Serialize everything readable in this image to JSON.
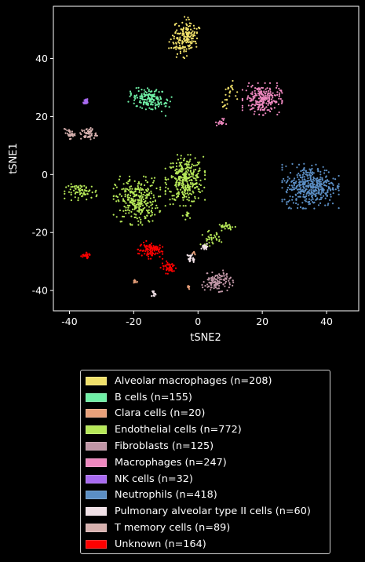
{
  "chart_data": {
    "type": "scatter",
    "xlabel": "tSNE2",
    "ylabel": "tSNE1",
    "xlim": [
      -45,
      50
    ],
    "ylim": [
      -47,
      58
    ],
    "x_ticks": [
      -40,
      -20,
      0,
      20,
      40
    ],
    "y_ticks": [
      -40,
      -20,
      0,
      20,
      40
    ],
    "legend_placement": "below",
    "series": [
      {
        "name": "Alveolar macrophages (n=208)",
        "color": "#f0e06a",
        "clusters": [
          {
            "cx": -4,
            "cy": 47,
            "sx": 2.0,
            "sy": 3.2,
            "n": 180,
            "rot": -0.3
          },
          {
            "cx": 10,
            "cy": 29,
            "sx": 1.0,
            "sy": 1.5,
            "n": 20,
            "rot": 0
          },
          {
            "cx": 8.5,
            "cy": 24,
            "sx": 0.5,
            "sy": 0.8,
            "n": 8,
            "rot": 0
          }
        ]
      },
      {
        "name": "B cells (n=155)",
        "color": "#6ff0a6",
        "clusters": [
          {
            "cx": -15,
            "cy": 26,
            "sx": 3.0,
            "sy": 1.7,
            "n": 155,
            "rot": -0.35
          }
        ]
      },
      {
        "name": "Clara cells (n=20)",
        "color": "#e8a07a",
        "clusters": [
          {
            "cx": -19.5,
            "cy": -37,
            "sx": 0.5,
            "sy": 0.3,
            "n": 8,
            "rot": 0
          },
          {
            "cx": -1,
            "cy": -27,
            "sx": 0.6,
            "sy": 0.4,
            "n": 6,
            "rot": 0
          },
          {
            "cx": -3,
            "cy": -39,
            "sx": 0.3,
            "sy": 0.3,
            "n": 6,
            "rot": 0
          }
        ]
      },
      {
        "name": "Endothelial cells (n=772)",
        "color": "#b6e858",
        "clusters": [
          {
            "cx": -4,
            "cy": -2,
            "sx": 2.8,
            "sy": 4.0,
            "n": 330,
            "rot": 0
          },
          {
            "cx": -19,
            "cy": -9,
            "sx": 3.3,
            "sy": 3.8,
            "n": 300,
            "rot": 0
          },
          {
            "cx": -36,
            "cy": -6,
            "sx": 2.5,
            "sy": 1.3,
            "n": 70,
            "rot": 0
          },
          {
            "cx": 4,
            "cy": -22,
            "sx": 1.5,
            "sy": 1.2,
            "n": 35,
            "rot": 0
          },
          {
            "cx": 9,
            "cy": -18,
            "sx": 1.3,
            "sy": 0.6,
            "n": 25,
            "rot": 0
          },
          {
            "cx": -3,
            "cy": -14,
            "sx": 0.8,
            "sy": 0.7,
            "n": 12,
            "rot": 0
          }
        ]
      },
      {
        "name": "Fibroblasts (n=125)",
        "color": "#c096a6",
        "clusters": [
          {
            "cx": 6,
            "cy": -37,
            "sx": 2.2,
            "sy": 1.6,
            "n": 125,
            "rot": 0.2
          }
        ]
      },
      {
        "name": "Macrophages (n=247)",
        "color": "#ee88bf",
        "clusters": [
          {
            "cx": 20,
            "cy": 26,
            "sx": 2.8,
            "sy": 2.5,
            "n": 230,
            "rot": 0
          },
          {
            "cx": 7,
            "cy": 18,
            "sx": 0.8,
            "sy": 0.6,
            "n": 17,
            "rot": 0
          }
        ]
      },
      {
        "name": "NK cells (n=32)",
        "color": "#a86af0",
        "clusters": [
          {
            "cx": -35,
            "cy": 25,
            "sx": 0.3,
            "sy": 0.5,
            "n": 32,
            "rot": 0
          }
        ]
      },
      {
        "name": "Neutrophils (n=418)",
        "color": "#5b8ec4",
        "clusters": [
          {
            "cx": 35,
            "cy": -4,
            "sx": 4.0,
            "sy": 3.5,
            "n": 418,
            "rot": 0
          }
        ]
      },
      {
        "name": "Pulmonary alveolar type II cells (n=60)",
        "color": "#f0e0e6",
        "clusters": [
          {
            "cx": -14,
            "cy": -41,
            "sx": 0.4,
            "sy": 0.4,
            "n": 12,
            "rot": 0
          },
          {
            "cx": -2,
            "cy": -29,
            "sx": 0.6,
            "sy": 0.8,
            "n": 25,
            "rot": 0
          },
          {
            "cx": 2,
            "cy": -25,
            "sx": 0.5,
            "sy": 0.5,
            "n": 23,
            "rot": 0
          }
        ]
      },
      {
        "name": "T memory cells (n=89)",
        "color": "#d6b0ae",
        "clusters": [
          {
            "cx": -34,
            "cy": 14,
            "sx": 1.2,
            "sy": 1.0,
            "n": 55,
            "rot": 0
          },
          {
            "cx": -40,
            "cy": 14,
            "sx": 0.8,
            "sy": 0.8,
            "n": 34,
            "rot": 0
          }
        ]
      },
      {
        "name": "Unknown (n=164)",
        "color": "#ff0000",
        "clusters": [
          {
            "cx": -15,
            "cy": -26,
            "sx": 1.8,
            "sy": 1.4,
            "n": 95,
            "rot": 0
          },
          {
            "cx": -9,
            "cy": -32,
            "sx": 1.2,
            "sy": 1.0,
            "n": 45,
            "rot": 0
          },
          {
            "cx": -35,
            "cy": -28,
            "sx": 0.8,
            "sy": 0.5,
            "n": 24,
            "rot": 0
          }
        ]
      }
    ]
  }
}
